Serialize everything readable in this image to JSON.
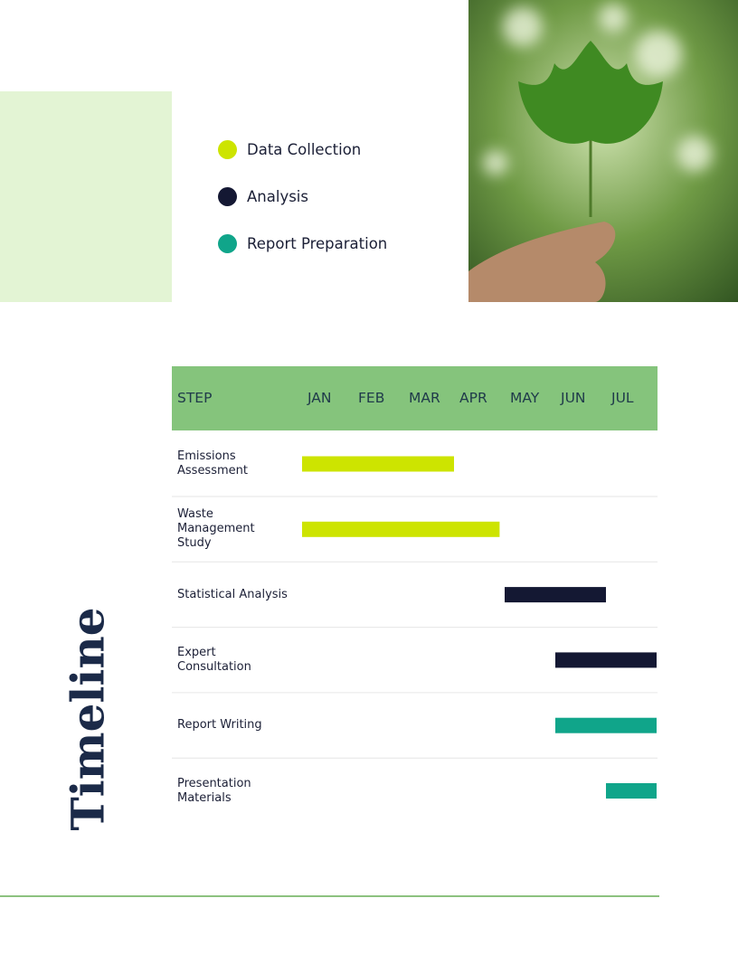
{
  "chart_data": {
    "type": "gantt",
    "title": "Timeline",
    "step_header": "STEP",
    "xlim": [
      0,
      7
    ],
    "xticks": [
      {
        "value": 0,
        "label": "JAN"
      },
      {
        "value": 1,
        "label": "FEB"
      },
      {
        "value": 2,
        "label": "MAR"
      },
      {
        "value": 3,
        "label": "APR"
      },
      {
        "value": 4,
        "label": "MAY"
      },
      {
        "value": 5,
        "label": "JUN"
      },
      {
        "value": 6,
        "label": "JUL"
      }
    ],
    "series": [
      {
        "name": "Data Collection",
        "color": "#cde400",
        "tasks": [
          {
            "name": "Emissions Assessment",
            "start": 0,
            "end": 3.0
          },
          {
            "name": "Waste Management Study",
            "start": 0,
            "end": 3.9
          }
        ]
      },
      {
        "name": "Analysis",
        "color": "#141833",
        "tasks": [
          {
            "name": "Statistical Analysis",
            "start": 4.0,
            "end": 6.0
          },
          {
            "name": "Expert Consultation",
            "start": 5.0,
            "end": 7.0
          }
        ]
      },
      {
        "name": "Report Preparation",
        "color": "#10a58a",
        "tasks": [
          {
            "name": "Report Writing",
            "start": 5.0,
            "end": 7.0
          },
          {
            "name": "Presentation Materials",
            "start": 6.0,
            "end": 7.0
          }
        ]
      }
    ]
  }
}
